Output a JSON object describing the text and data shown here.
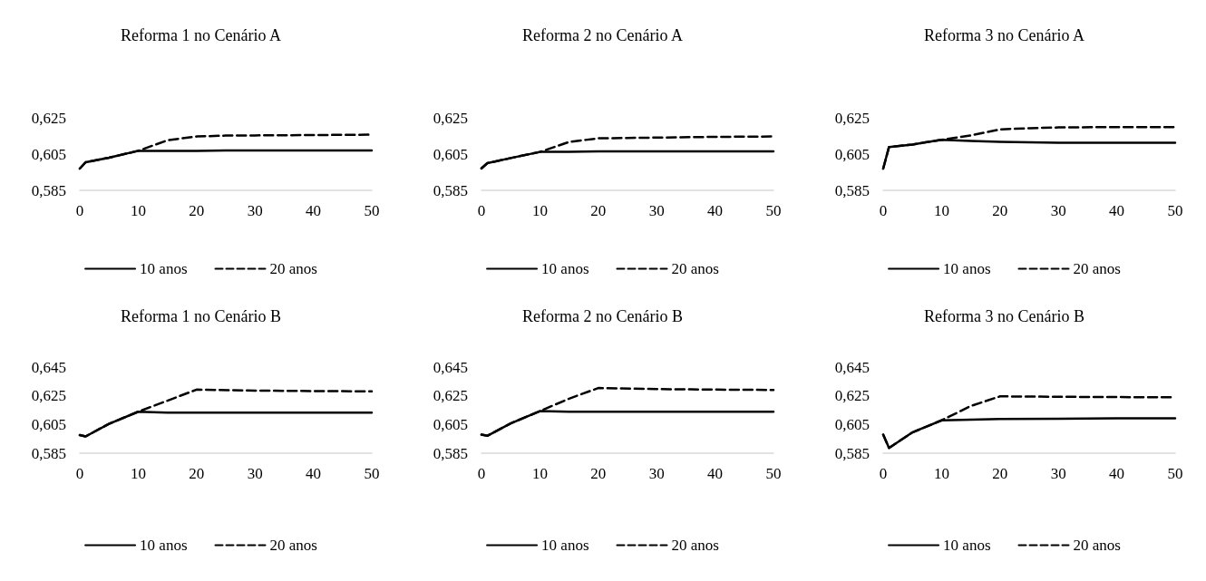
{
  "chart_data": [
    {
      "type": "line",
      "title": "Reforma 1 no Cenário A",
      "legend": "bottom",
      "marker": "none",
      "grid": false,
      "xlim": [
        0,
        50
      ],
      "xticks": [
        0,
        10,
        20,
        30,
        40,
        50
      ],
      "ylim": [
        0.585,
        0.625
      ],
      "yticks": [
        {
          "value": 0.585,
          "label": "0,585"
        },
        {
          "value": 0.605,
          "label": "0,605"
        },
        {
          "value": 0.625,
          "label": "0,625"
        }
      ],
      "series": [
        {
          "name": "10 anos",
          "color": "#000000",
          "line_style": "solid",
          "x": [
            0,
            1,
            5,
            10,
            15,
            20,
            25,
            30,
            40,
            50
          ],
          "values": [
            0.597,
            0.6005,
            0.603,
            0.6068,
            0.6068,
            0.6068,
            0.607,
            0.607,
            0.607,
            0.607
          ]
        },
        {
          "name": "20 anos",
          "color": "#000000",
          "line_style": "dashed",
          "x": [
            0,
            1,
            5,
            10,
            15,
            20,
            25,
            30,
            40,
            50
          ],
          "values": [
            0.597,
            0.6005,
            0.603,
            0.6068,
            0.6126,
            0.6147,
            0.6152,
            0.6153,
            0.6155,
            0.6157
          ]
        }
      ]
    },
    {
      "type": "line",
      "title": "Reforma 2 no Cenário A",
      "legend": "bottom",
      "marker": "none",
      "grid": false,
      "xlim": [
        0,
        50
      ],
      "xticks": [
        0,
        10,
        20,
        30,
        40,
        50
      ],
      "ylim": [
        0.585,
        0.625
      ],
      "yticks": [
        {
          "value": 0.585,
          "label": "0,585"
        },
        {
          "value": 0.605,
          "label": "0,605"
        },
        {
          "value": 0.625,
          "label": "0,625"
        }
      ],
      "series": [
        {
          "name": "10 anos",
          "color": "#000000",
          "line_style": "solid",
          "x": [
            0,
            1,
            5,
            10,
            15,
            20,
            25,
            30,
            40,
            50
          ],
          "values": [
            0.5971,
            0.6,
            0.6028,
            0.6062,
            0.6062,
            0.6065,
            0.6065,
            0.6065,
            0.6065,
            0.6065
          ]
        },
        {
          "name": "20 anos",
          "color": "#000000",
          "line_style": "dashed",
          "x": [
            0,
            1,
            5,
            10,
            15,
            20,
            25,
            30,
            40,
            50
          ],
          "values": [
            0.5971,
            0.6,
            0.6028,
            0.6062,
            0.6117,
            0.6137,
            0.6139,
            0.6141,
            0.6145,
            0.6147
          ]
        }
      ]
    },
    {
      "type": "line",
      "title": "Reforma 3 no Cenário A",
      "legend": "bottom",
      "marker": "none",
      "grid": false,
      "xlim": [
        0,
        50
      ],
      "xticks": [
        0,
        10,
        20,
        30,
        40,
        50
      ],
      "ylim": [
        0.585,
        0.625
      ],
      "yticks": [
        {
          "value": 0.585,
          "label": "0,585"
        },
        {
          "value": 0.605,
          "label": "0,605"
        },
        {
          "value": 0.625,
          "label": "0,625"
        }
      ],
      "series": [
        {
          "name": "10 anos",
          "color": "#000000",
          "line_style": "solid",
          "x": [
            0,
            1,
            5,
            10,
            15,
            20,
            25,
            30,
            40,
            50
          ],
          "values": [
            0.597,
            0.6089,
            0.6103,
            0.6129,
            0.6122,
            0.6117,
            0.6115,
            0.6113,
            0.6113,
            0.6113
          ]
        },
        {
          "name": "20 anos",
          "color": "#000000",
          "line_style": "dashed",
          "x": [
            0,
            1,
            5,
            10,
            15,
            20,
            25,
            30,
            40,
            50
          ],
          "values": [
            0.597,
            0.6089,
            0.6103,
            0.6129,
            0.6153,
            0.6186,
            0.6193,
            0.6197,
            0.6199,
            0.6199
          ]
        }
      ]
    },
    {
      "type": "line",
      "title": "Reforma 1 no Cenário B",
      "legend": "bottom",
      "marker": "none",
      "grid": false,
      "xlim": [
        0,
        50
      ],
      "xticks": [
        0,
        10,
        20,
        30,
        40,
        50
      ],
      "ylim": [
        0.585,
        0.645
      ],
      "yticks": [
        {
          "value": 0.585,
          "label": "0,585"
        },
        {
          "value": 0.605,
          "label": "0,605"
        },
        {
          "value": 0.625,
          "label": "0,625"
        },
        {
          "value": 0.645,
          "label": "0,645"
        }
      ],
      "series": [
        {
          "name": "10 anos",
          "color": "#000000",
          "line_style": "solid",
          "x": [
            0,
            1,
            5,
            10,
            15,
            20,
            30,
            40,
            50
          ],
          "values": [
            0.5976,
            0.5967,
            0.6055,
            0.6139,
            0.6133,
            0.6133,
            0.6133,
            0.6133,
            0.6133
          ]
        },
        {
          "name": "20 anos",
          "color": "#000000",
          "line_style": "dashed",
          "x": [
            0,
            1,
            5,
            10,
            15,
            20,
            30,
            40,
            50
          ],
          "values": [
            0.5976,
            0.5967,
            0.6055,
            0.6139,
            0.6216,
            0.6293,
            0.6286,
            0.6283,
            0.6281
          ]
        }
      ]
    },
    {
      "type": "line",
      "title": "Reforma 2 no Cenário B",
      "legend": "bottom",
      "marker": "none",
      "grid": false,
      "xlim": [
        0,
        50
      ],
      "xticks": [
        0,
        10,
        20,
        30,
        40,
        50
      ],
      "ylim": [
        0.585,
        0.645
      ],
      "yticks": [
        {
          "value": 0.585,
          "label": "0,585"
        },
        {
          "value": 0.605,
          "label": "0,605"
        },
        {
          "value": 0.625,
          "label": "0,625"
        },
        {
          "value": 0.645,
          "label": "0,645"
        }
      ],
      "series": [
        {
          "name": "10 anos",
          "color": "#000000",
          "line_style": "solid",
          "x": [
            0,
            1,
            5,
            10,
            15,
            20,
            30,
            40,
            50
          ],
          "values": [
            0.5979,
            0.5971,
            0.6058,
            0.6143,
            0.6139,
            0.6139,
            0.6139,
            0.6139,
            0.6139
          ]
        },
        {
          "name": "20 anos",
          "color": "#000000",
          "line_style": "dashed",
          "x": [
            0,
            1,
            5,
            10,
            15,
            20,
            30,
            40,
            50
          ],
          "values": [
            0.5979,
            0.5971,
            0.6058,
            0.6143,
            0.623,
            0.6304,
            0.6297,
            0.6293,
            0.6291
          ]
        }
      ]
    },
    {
      "type": "line",
      "title": "Reforma 3 no Cenário B",
      "legend": "bottom",
      "marker": "none",
      "grid": false,
      "xlim": [
        0,
        50
      ],
      "xticks": [
        0,
        10,
        20,
        30,
        40,
        50
      ],
      "ylim": [
        0.585,
        0.645
      ],
      "yticks": [
        {
          "value": 0.585,
          "label": "0,585"
        },
        {
          "value": 0.605,
          "label": "0,605"
        },
        {
          "value": 0.625,
          "label": "0,625"
        },
        {
          "value": 0.645,
          "label": "0,645"
        }
      ],
      "series": [
        {
          "name": "10 anos",
          "color": "#000000",
          "line_style": "solid",
          "x": [
            0,
            1,
            5,
            10,
            15,
            20,
            30,
            40,
            50
          ],
          "values": [
            0.5979,
            0.5886,
            0.5995,
            0.6079,
            0.6084,
            0.6089,
            0.609,
            0.6093,
            0.6093
          ]
        },
        {
          "name": "20 anos",
          "color": "#000000",
          "line_style": "dashed",
          "x": [
            0,
            1,
            5,
            10,
            15,
            20,
            30,
            40,
            50
          ],
          "values": [
            0.5979,
            0.5886,
            0.5995,
            0.6079,
            0.6179,
            0.6246,
            0.6243,
            0.6241,
            0.624
          ]
        }
      ]
    }
  ]
}
